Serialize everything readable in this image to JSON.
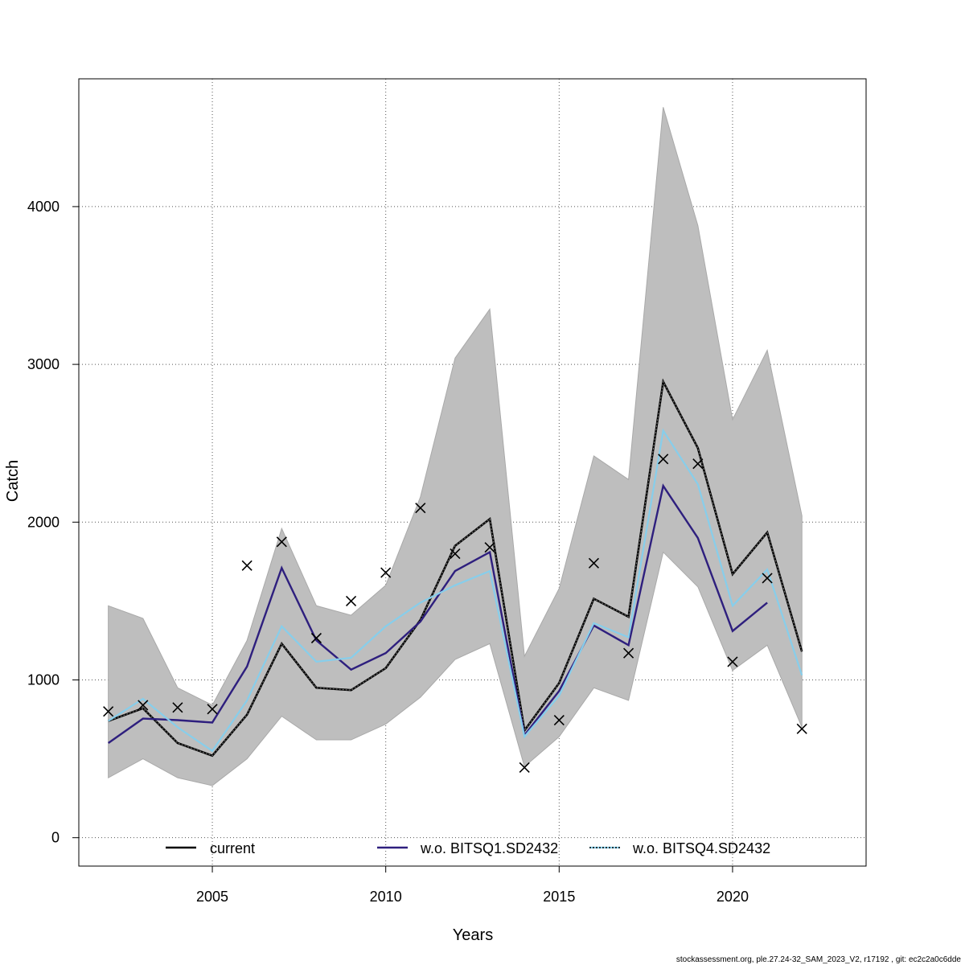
{
  "chart_data": {
    "type": "line",
    "xlabel": "Years",
    "ylabel": "Catch",
    "xlim": [
      2001.15,
      2023.85
    ],
    "ylim": [
      -180,
      4810
    ],
    "x_ticks": [
      2005,
      2010,
      2015,
      2020
    ],
    "y_ticks": [
      0,
      1000,
      2000,
      3000,
      4000
    ],
    "grid": true,
    "legend_position": "bottom",
    "x": [
      2002,
      2003,
      2004,
      2005,
      2006,
      2007,
      2008,
      2009,
      2010,
      2011,
      2012,
      2013,
      2014,
      2015,
      2016,
      2017,
      2018,
      2019,
      2020,
      2021,
      2022
    ],
    "confidence_band": {
      "upper": [
        1470,
        1390,
        950,
        840,
        1250,
        1960,
        1470,
        1410,
        1600,
        2160,
        3040,
        3350,
        1150,
        1580,
        2420,
        2270,
        4630,
        3880,
        2650,
        3090,
        2040
      ],
      "lower": [
        380,
        500,
        380,
        330,
        500,
        770,
        620,
        620,
        720,
        890,
        1130,
        1230,
        450,
        640,
        950,
        870,
        1810,
        1590,
        1060,
        1220,
        700
      ]
    },
    "series": [
      {
        "name": "current",
        "color": "#000000",
        "values": [
          740,
          820,
          600,
          520,
          780,
          1230,
          950,
          935,
          1075,
          1380,
          1850,
          2020,
          680,
          980,
          1515,
          1400,
          2890,
          2470,
          1670,
          1935,
          1180
        ]
      },
      {
        "name": "w.o. BITSQ1.SD2432",
        "color": "#2E1F7E",
        "values": [
          600,
          755,
          745,
          730,
          1085,
          1710,
          1250,
          1065,
          1170,
          1370,
          1690,
          1810,
          650,
          930,
          1345,
          1220,
          2230,
          1900,
          1310,
          1490,
          null
        ]
      },
      {
        "name": "w.o. BITSQ4.SD2432",
        "color": "#87CEEB",
        "values": [
          740,
          880,
          700,
          550,
          870,
          1340,
          1115,
          1140,
          1340,
          1490,
          1600,
          1690,
          640,
          900,
          1360,
          1270,
          2580,
          2240,
          1470,
          1700,
          1030
        ]
      }
    ],
    "observations": {
      "marker": "x",
      "x": [
        2002,
        2003,
        2004,
        2005,
        2006,
        2007,
        2008,
        2009,
        2010,
        2011,
        2012,
        2013,
        2014,
        2015,
        2016,
        2017,
        2018,
        2019,
        2020,
        2021,
        2022
      ],
      "values": [
        800,
        840,
        825,
        815,
        1725,
        1875,
        1265,
        1500,
        1680,
        2090,
        1800,
        1840,
        445,
        745,
        1740,
        1170,
        2400,
        2370,
        1115,
        1645,
        690
      ]
    },
    "legend": {
      "entries": [
        "current",
        "w.o. BITSQ1.SD2432",
        "w.o. BITSQ4.SD2432"
      ]
    },
    "colors": {
      "band": "#BEBEBE",
      "band_edge": "#A9A9A9",
      "grid": "#555555"
    }
  },
  "footer": "stockassessment.org, ple.27.24-32_SAM_2023_V2, r17192 , git: ec2c2a0c6dde"
}
